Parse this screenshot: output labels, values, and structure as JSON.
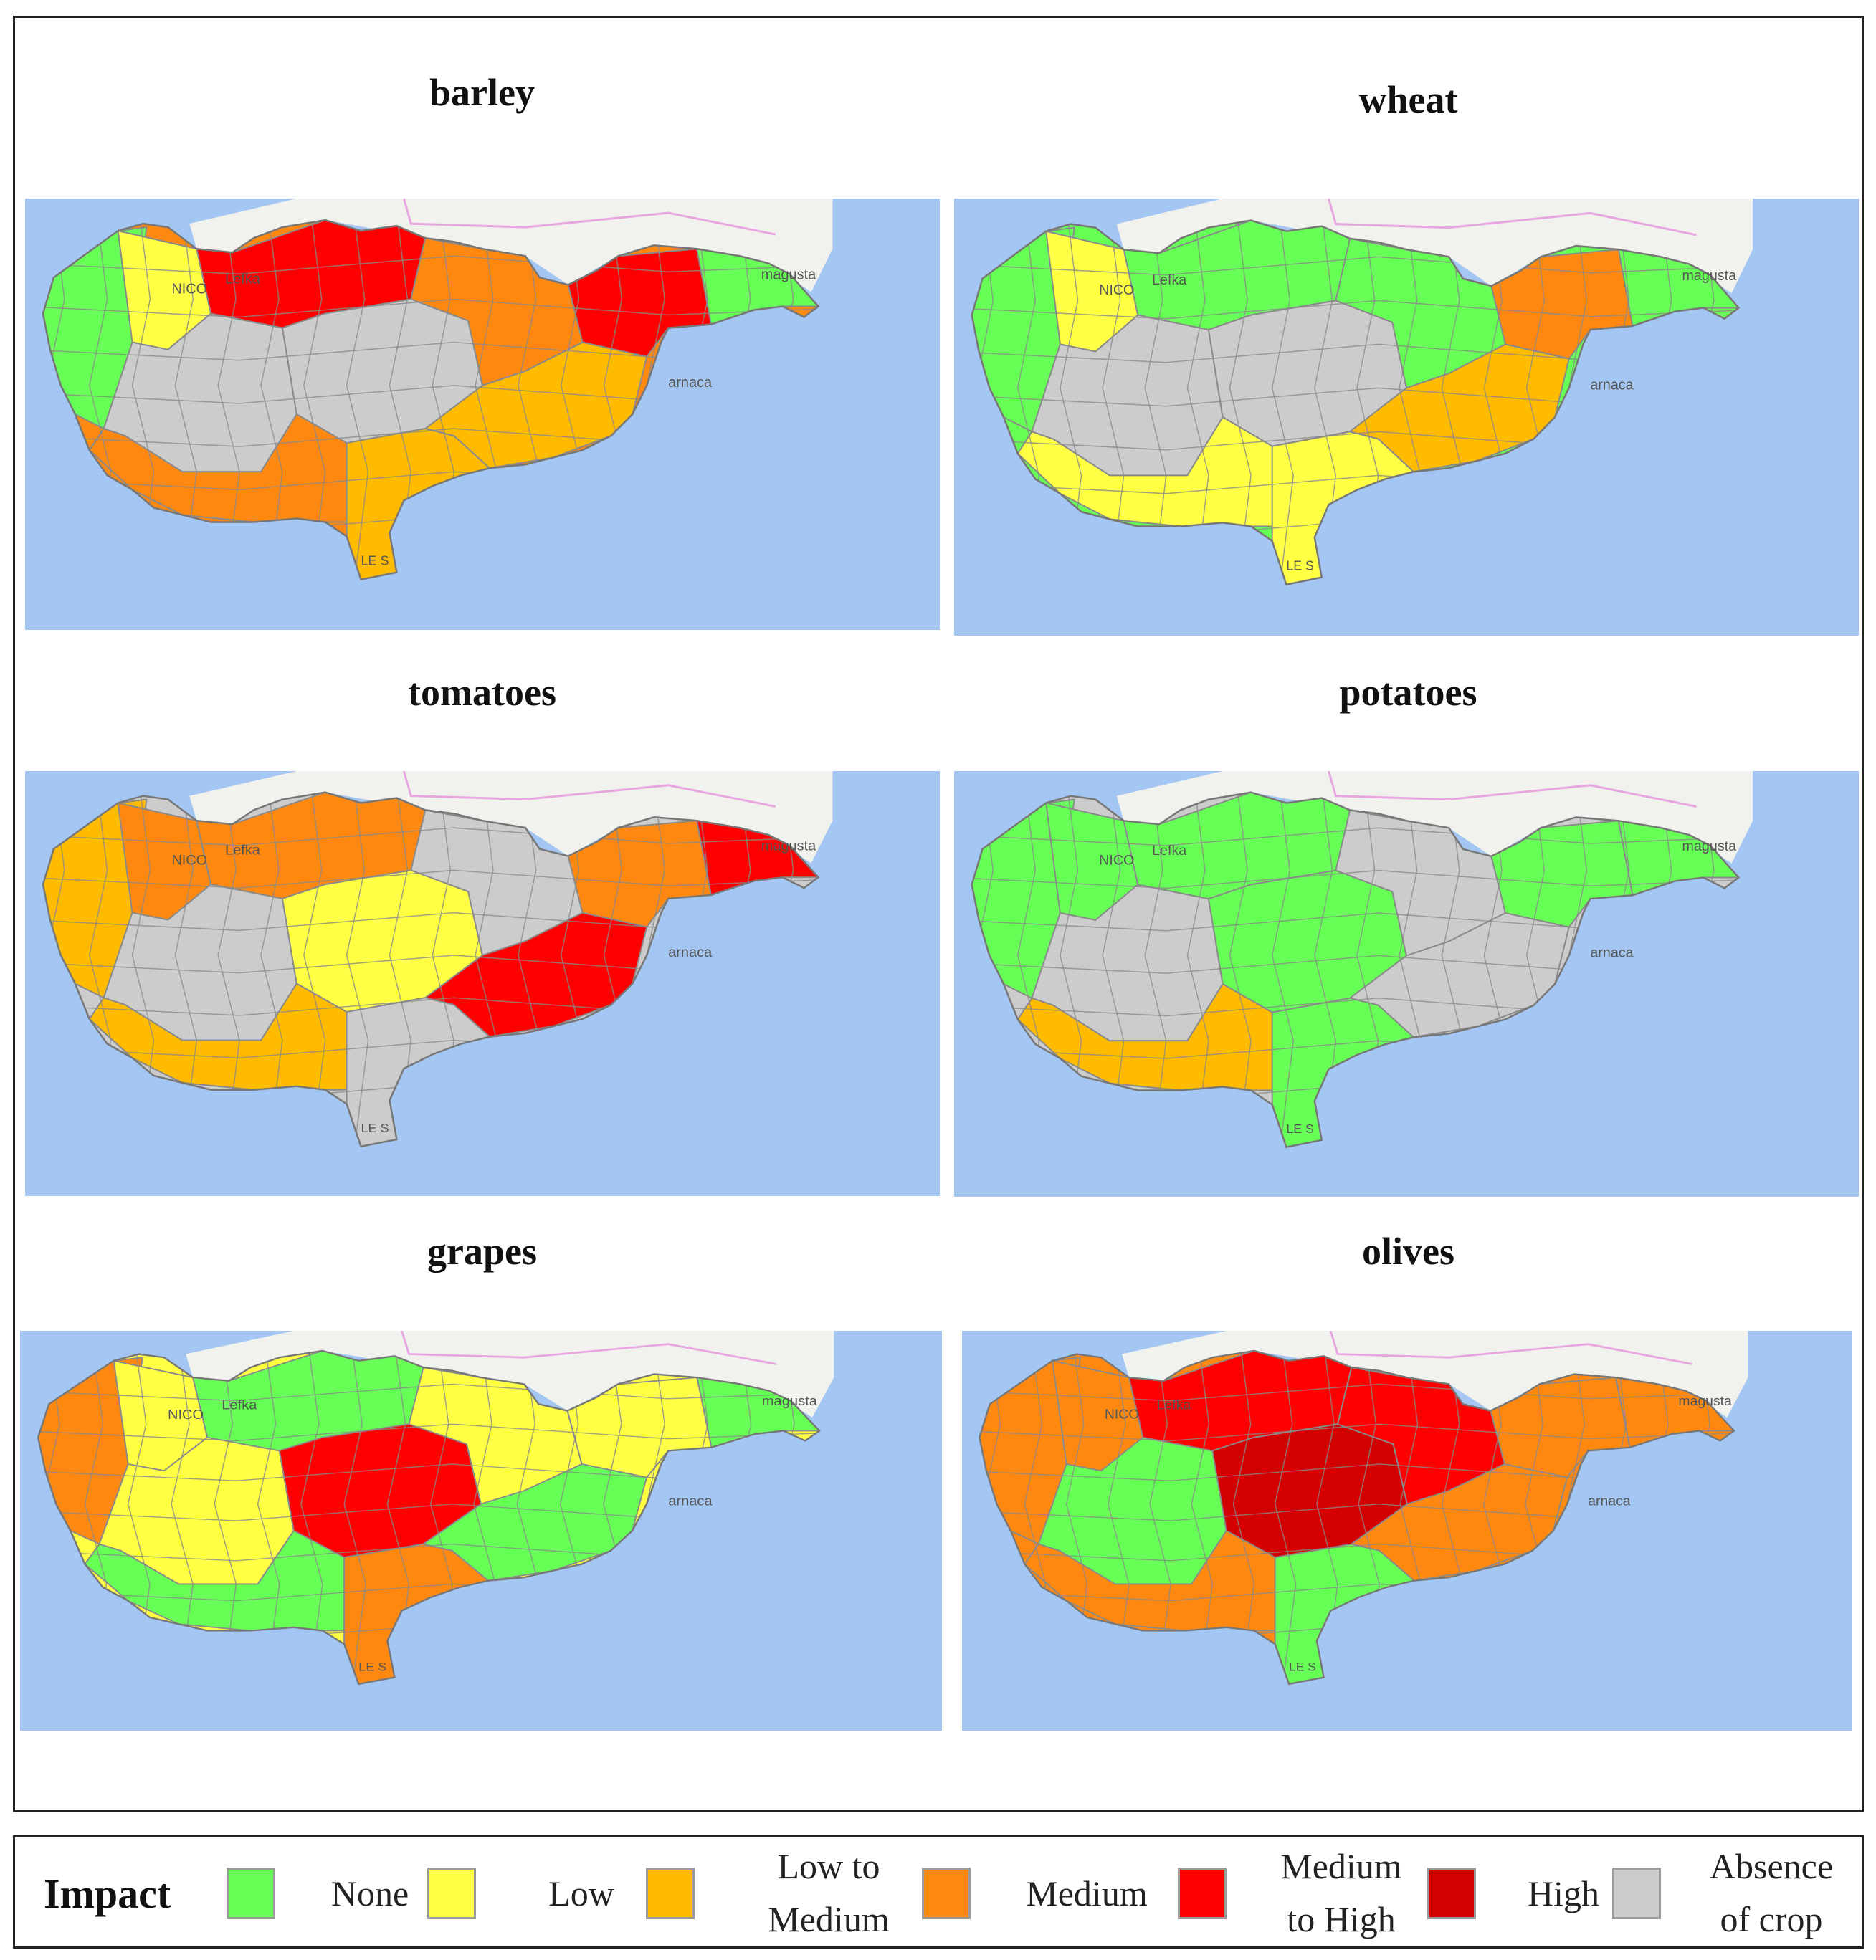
{
  "legend": {
    "title": "Impact",
    "items": [
      {
        "key": "none",
        "line1": "None",
        "line2": "",
        "color": "#66ff55"
      },
      {
        "key": "low",
        "line1": "Low",
        "line2": "",
        "color": "#ffff44"
      },
      {
        "key": "lowmed",
        "line1": "Low to",
        "line2": "Medium",
        "color": "#ffbb00"
      },
      {
        "key": "med",
        "line1": "Medium",
        "line2": "",
        "color": "#ff8811"
      },
      {
        "key": "medhi",
        "line1": "Medium",
        "line2": "to High",
        "color": "#ff0000"
      },
      {
        "key": "high",
        "line1": "High",
        "line2": "",
        "color": "#d40000"
      },
      {
        "key": "absent",
        "line1": "Absence",
        "line2": "of crop",
        "color": "#cccccc"
      }
    ]
  },
  "map_labels": {
    "lefka": "Lefka",
    "nicosia_partial": "NICO",
    "famagusta_partial": "magusta",
    "larnaca_partial": "arnaca",
    "limassol_partial": "LE   S"
  },
  "maps": [
    {
      "crop": "barley",
      "dominant": "med",
      "regions": {
        "w": "none",
        "nw": "low",
        "cw": "absent",
        "cn": "medhi",
        "c": "absent",
        "ce": "med",
        "e": "medhi",
        "se": "lowmed",
        "s": "med",
        "ss": "lowmed",
        "far_e": "none"
      }
    },
    {
      "crop": "wheat",
      "dominant": "none",
      "regions": {
        "w": "none",
        "nw": "low",
        "cw": "absent",
        "cn": "none",
        "c": "absent",
        "ce": "none",
        "e": "med",
        "se": "lowmed",
        "s": "low",
        "ss": "low",
        "far_e": "none"
      }
    },
    {
      "crop": "tomatoes",
      "dominant": "absent",
      "regions": {
        "w": "lowmed",
        "nw": "med",
        "cw": "absent",
        "cn": "med",
        "c": "low",
        "ce": "absent",
        "e": "med",
        "se": "medhi",
        "s": "lowmed",
        "ss": "absent",
        "far_e": "medhi"
      }
    },
    {
      "crop": "potatoes",
      "dominant": "absent",
      "regions": {
        "w": "none",
        "nw": "none",
        "cw": "absent",
        "cn": "none",
        "c": "none",
        "ce": "absent",
        "e": "none",
        "se": "absent",
        "s": "lowmed",
        "ss": "none",
        "far_e": "none"
      }
    },
    {
      "crop": "grapes",
      "dominant": "low",
      "regions": {
        "w": "med",
        "nw": "low",
        "cw": "low",
        "cn": "none",
        "c": "medhi",
        "ce": "low",
        "e": "low",
        "se": "none",
        "s": "none",
        "ss": "med",
        "far_e": "none"
      }
    },
    {
      "crop": "olives",
      "dominant": "med",
      "regions": {
        "w": "med",
        "nw": "med",
        "cw": "none",
        "cn": "medhi",
        "c": "high",
        "ce": "medhi",
        "e": "med",
        "se": "med",
        "s": "med",
        "ss": "none",
        "far_e": "med"
      }
    }
  ]
}
